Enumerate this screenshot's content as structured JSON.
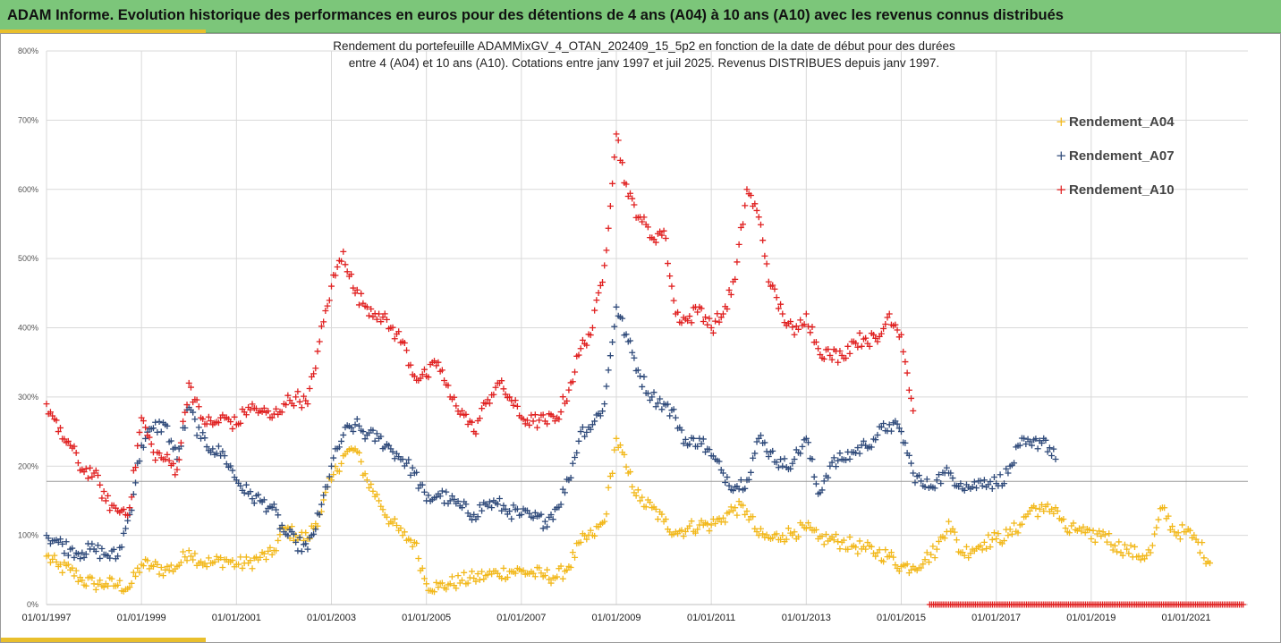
{
  "header": {
    "title": "ADAM Informe. Evolution historique des performances en euros pour des détentions de 4 ans (A04) à 10 ans (A10) avec les revenus connus distribués"
  },
  "colors": {
    "title_bar": "#7cc67a",
    "accent": "#e9bf2c",
    "A04": "#f2b81a",
    "A07": "#2f4a7a",
    "A10": "#e02020"
  },
  "chart_data": {
    "type": "scatter",
    "title_lines": [
      "Rendement du portefeuille ADAMMixGV_4_OTAN_202409_15_5p2  en fonction de la date de début pour des durées",
      "entre 4 (A04) et 10 ans (A10). Cotations  entre janv 1997 et juil 2025. Revenus DISTRIBUES depuis janv 1997."
    ],
    "xlabel": "",
    "ylabel": "",
    "x_range": [
      "1997-01-01",
      "2022-04-01"
    ],
    "y_range": [
      0,
      800
    ],
    "y_ticks": [
      "0%",
      "100%",
      "200%",
      "300%",
      "400%",
      "500%",
      "600%",
      "700%",
      "800%"
    ],
    "y_tick_values": [
      0,
      100,
      200,
      300,
      400,
      500,
      600,
      700,
      800
    ],
    "x_ticks": [
      "01/01/1997",
      "01/01/1999",
      "01/01/2001",
      "01/01/2003",
      "01/01/2005",
      "01/01/2007",
      "01/01/2009",
      "01/01/2011",
      "01/01/2013",
      "01/01/2015",
      "01/01/2017",
      "01/01/2019",
      "01/01/2021"
    ],
    "x_tick_values": [
      1997,
      1999,
      2001,
      2003,
      2005,
      2007,
      2009,
      2011,
      2013,
      2015,
      2017,
      2019,
      2021
    ],
    "grid": true,
    "reference_line": 178,
    "legend_position": "right",
    "series": [
      {
        "name": "Rendement_A04",
        "x": [
          1997.0,
          1997.25,
          1997.5,
          1997.75,
          1998.0,
          1998.25,
          1998.5,
          1998.75,
          1999.0,
          1999.25,
          1999.5,
          1999.75,
          2000.0,
          2000.25,
          2000.5,
          2000.75,
          2001.0,
          2001.25,
          2001.5,
          2001.75,
          2002.0,
          2002.25,
          2002.5,
          2002.75,
          2003.0,
          2003.25,
          2003.5,
          2003.75,
          2004.0,
          2004.25,
          2004.5,
          2004.75,
          2005.0,
          2005.25,
          2005.5,
          2005.75,
          2006.0,
          2006.25,
          2006.5,
          2006.75,
          2007.0,
          2007.25,
          2007.5,
          2007.75,
          2008.0,
          2008.25,
          2008.5,
          2008.75,
          2009.0,
          2009.25,
          2009.5,
          2009.75,
          2010.0,
          2010.25,
          2010.5,
          2010.75,
          2011.0,
          2011.25,
          2011.5,
          2011.75,
          2012.0,
          2012.25,
          2012.5,
          2012.75,
          2013.0,
          2013.25,
          2013.5,
          2013.75,
          2014.0,
          2014.25,
          2014.5,
          2014.75,
          2015.0,
          2015.25,
          2015.5,
          2015.75,
          2016.0,
          2016.25,
          2016.5,
          2016.75,
          2017.0,
          2017.25,
          2017.5,
          2017.75,
          2018.0,
          2018.25,
          2018.5,
          2018.75,
          2019.0,
          2019.25,
          2019.5,
          2019.75,
          2020.0,
          2020.25,
          2020.5,
          2020.75,
          2021.0,
          2021.25,
          2021.5
        ],
        "values": [
          70,
          55,
          50,
          35,
          30,
          30,
          28,
          25,
          58,
          55,
          50,
          55,
          78,
          62,
          60,
          65,
          58,
          60,
          68,
          72,
          110,
          100,
          95,
          130,
          180,
          215,
          225,
          180,
          150,
          120,
          100,
          90,
          30,
          25,
          30,
          35,
          38,
          42,
          45,
          48,
          48,
          45,
          42,
          40,
          55,
          90,
          100,
          120,
          240,
          190,
          150,
          140,
          120,
          105,
          110,
          115,
          115,
          125,
          140,
          135,
          100,
          95,
          100,
          105,
          110,
          95,
          95,
          90,
          85,
          80,
          75,
          70,
          55,
          55,
          65,
          80,
          120,
          75,
          80,
          90,
          95,
          100,
          115,
          140,
          135,
          140,
          105,
          110,
          95,
          105,
          85,
          80,
          70,
          75,
          140,
          105,
          105,
          90,
          60
        ],
        "marker": "+"
      },
      {
        "name": "Rendement_A07",
        "x": [
          1997.0,
          1997.25,
          1997.5,
          1997.75,
          1998.0,
          1998.25,
          1998.5,
          1998.75,
          1999.0,
          1999.25,
          1999.5,
          1999.75,
          2000.0,
          2000.25,
          2000.5,
          2000.75,
          2001.0,
          2001.25,
          2001.5,
          2001.75,
          2002.0,
          2002.25,
          2002.5,
          2002.75,
          2003.0,
          2003.25,
          2003.5,
          2003.75,
          2004.0,
          2004.25,
          2004.5,
          2004.75,
          2005.0,
          2005.25,
          2005.5,
          2005.75,
          2006.0,
          2006.25,
          2006.5,
          2006.75,
          2007.0,
          2007.25,
          2007.5,
          2007.75,
          2008.0,
          2008.25,
          2008.5,
          2008.75,
          2009.0,
          2009.25,
          2009.5,
          2009.75,
          2010.0,
          2010.25,
          2010.5,
          2010.75,
          2011.0,
          2011.25,
          2011.5,
          2011.75,
          2012.0,
          2012.25,
          2012.5,
          2012.75,
          2013.0,
          2013.25,
          2013.5,
          2013.75,
          2014.0,
          2014.25,
          2014.5,
          2014.75,
          2015.0,
          2015.25,
          2015.5,
          2015.75,
          2016.0,
          2016.25,
          2016.5,
          2016.75,
          2017.0,
          2017.25,
          2017.5,
          2017.75,
          2018.0,
          2018.25
        ],
        "values": [
          100,
          90,
          80,
          75,
          80,
          72,
          70,
          130,
          230,
          255,
          260,
          210,
          285,
          240,
          225,
          215,
          180,
          160,
          150,
          140,
          105,
          90,
          80,
          130,
          200,
          245,
          260,
          245,
          240,
          225,
          210,
          190,
          150,
          160,
          150,
          140,
          130,
          145,
          145,
          135,
          130,
          125,
          120,
          140,
          180,
          250,
          260,
          290,
          430,
          380,
          330,
          300,
          290,
          270,
          230,
          240,
          215,
          190,
          170,
          180,
          240,
          220,
          200,
          210,
          240,
          160,
          200,
          210,
          220,
          230,
          245,
          260,
          250,
          190,
          170,
          180,
          190,
          175,
          170,
          180,
          175,
          190,
          230,
          230,
          240,
          210
        ],
        "marker": "+"
      },
      {
        "name": "Rendement_A10",
        "x": [
          1997.0,
          1997.25,
          1997.5,
          1997.75,
          1998.0,
          1998.25,
          1998.5,
          1998.75,
          1999.0,
          1999.25,
          1999.5,
          1999.75,
          2000.0,
          2000.25,
          2000.5,
          2000.75,
          2001.0,
          2001.25,
          2001.5,
          2001.75,
          2002.0,
          2002.25,
          2002.5,
          2002.75,
          2003.0,
          2003.25,
          2003.5,
          2003.75,
          2004.0,
          2004.25,
          2004.5,
          2004.75,
          2005.0,
          2005.25,
          2005.5,
          2005.75,
          2006.0,
          2006.25,
          2006.5,
          2006.75,
          2007.0,
          2007.25,
          2007.5,
          2007.75,
          2008.0,
          2008.25,
          2008.5,
          2008.75,
          2009.0,
          2009.25,
          2009.5,
          2009.75,
          2010.0,
          2010.25,
          2010.5,
          2010.75,
          2011.0,
          2011.25,
          2011.5,
          2011.75,
          2012.0,
          2012.25,
          2012.5,
          2012.75,
          2013.0,
          2013.25,
          2013.5,
          2013.75,
          2014.0,
          2014.25,
          2014.5,
          2014.75,
          2015.0,
          2015.25
        ],
        "values": [
          290,
          250,
          230,
          195,
          190,
          150,
          135,
          140,
          270,
          220,
          210,
          195,
          320,
          270,
          260,
          270,
          260,
          285,
          280,
          270,
          290,
          300,
          290,
          380,
          460,
          510,
          450,
          430,
          420,
          400,
          380,
          330,
          330,
          350,
          300,
          280,
          250,
          290,
          320,
          300,
          270,
          265,
          265,
          270,
          310,
          370,
          400,
          490,
          680,
          590,
          560,
          530,
          540,
          420,
          410,
          430,
          400,
          420,
          470,
          600,
          560,
          460,
          420,
          390,
          420,
          370,
          360,
          360,
          380,
          385,
          380,
          420,
          390,
          280
        ],
        "marker": "+"
      }
    ]
  }
}
